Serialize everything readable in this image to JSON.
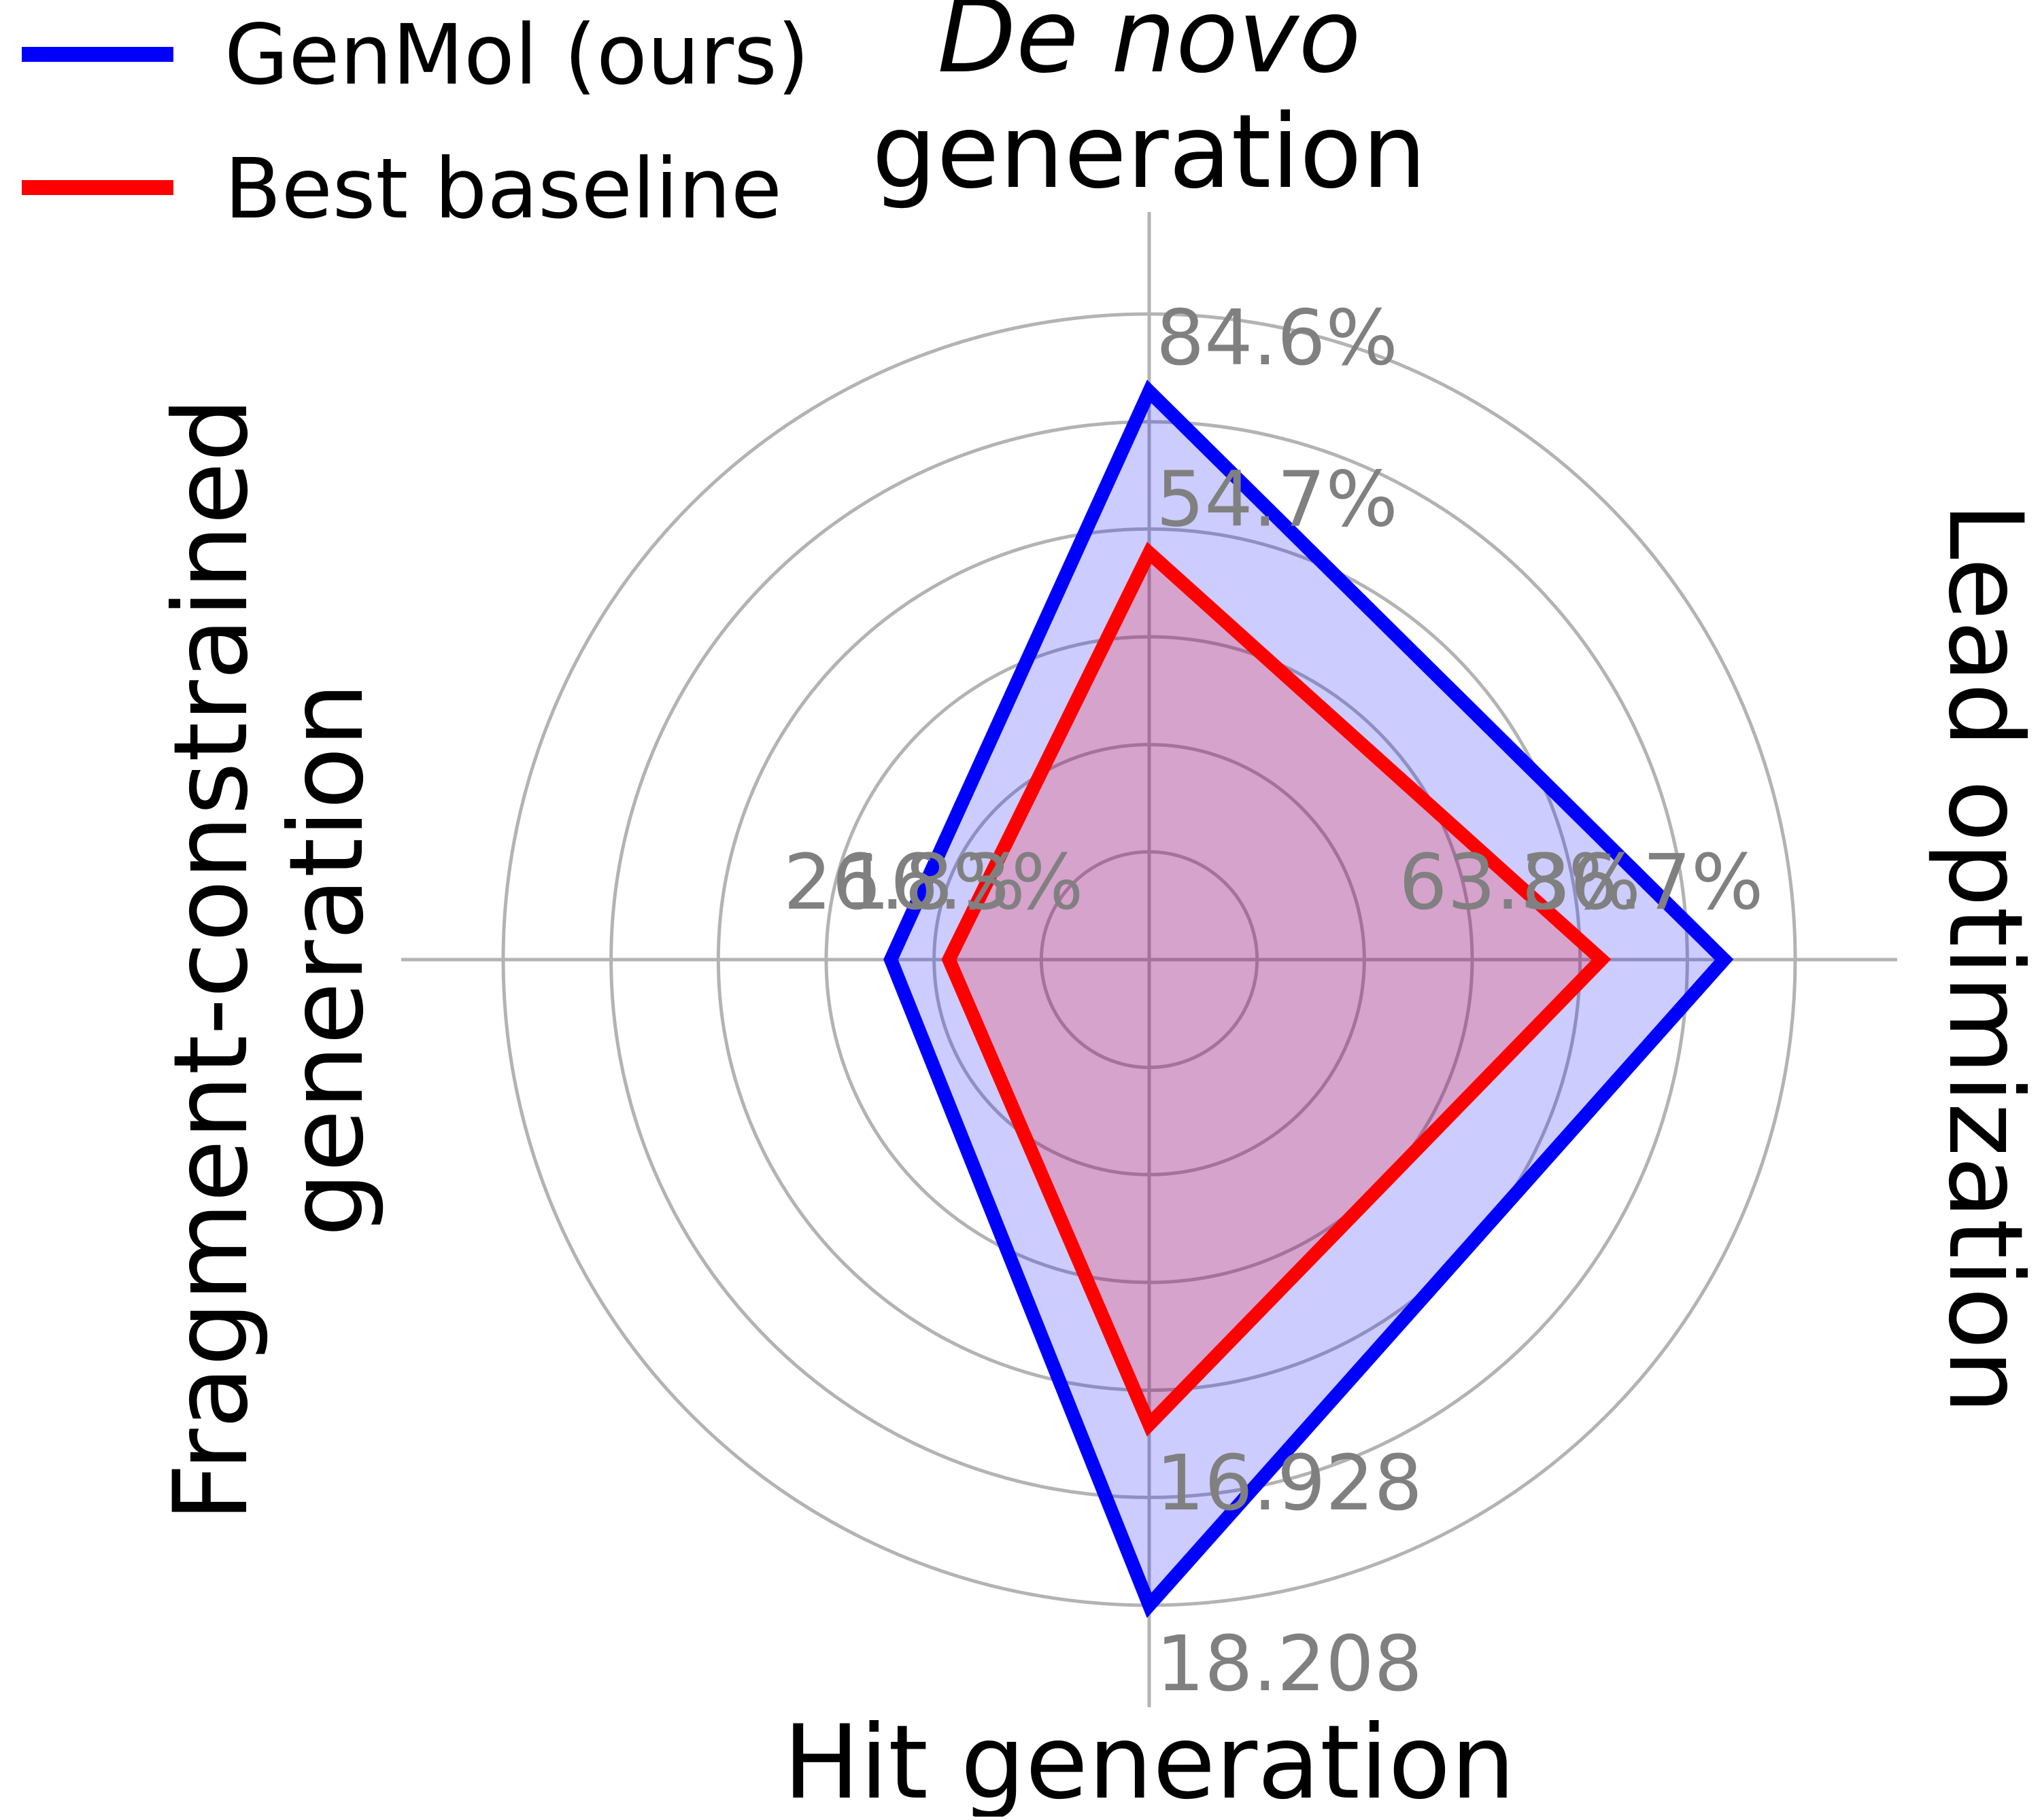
{
  "chart_data": {
    "type": "radar",
    "axes": [
      {
        "title_italic": "De novo",
        "title": "generation"
      },
      {
        "title": "Lead optimization"
      },
      {
        "title": "Hit generation"
      },
      {
        "title": "Fragment-constrained generation",
        "title_line1": "Fragment-constrained",
        "title_line2": "generation"
      }
    ],
    "series": [
      {
        "name": "GenMol (ours)",
        "color": "#0000ff",
        "fill": "rgba(0,0,255,0.2)",
        "value_labels": [
          "84.6%",
          "86.7%",
          "18.208",
          "26.8%"
        ],
        "normalized": [
          0.88,
          0.89,
          1.0,
          0.4
        ]
      },
      {
        "name": "Best baseline",
        "color": "#ff0000",
        "fill": "rgba(255,0,0,0.2)",
        "value_labels": [
          "54.7%",
          "63.3%",
          "16.928",
          "16.3%"
        ],
        "normalized": [
          0.63,
          0.7,
          0.72,
          0.31
        ]
      }
    ],
    "rings": [
      0.167,
      0.333,
      0.5,
      0.667,
      0.833,
      1.0
    ],
    "grid": true,
    "legend": "top-left"
  }
}
